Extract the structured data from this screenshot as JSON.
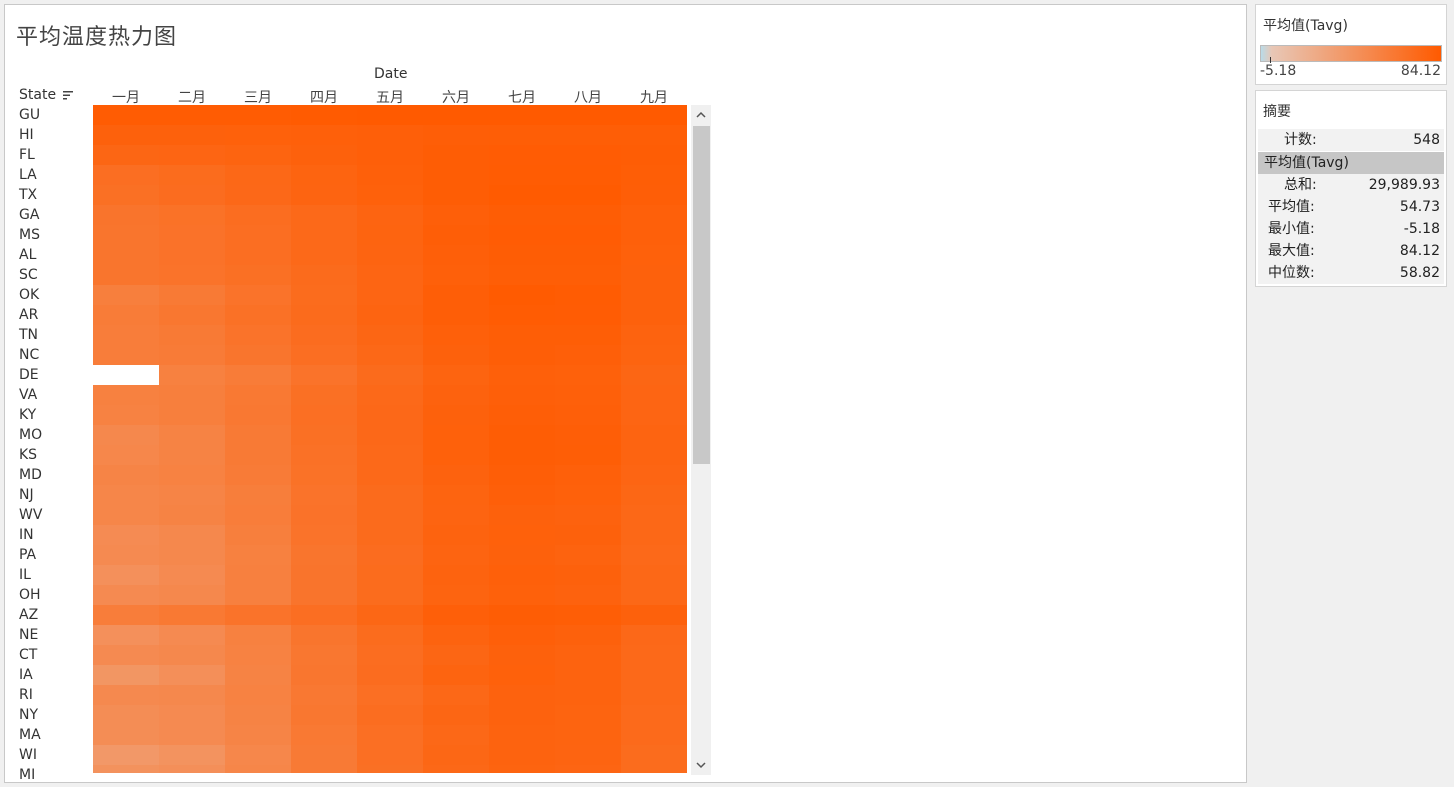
{
  "title": "平均温度热力图",
  "column_group": "Date",
  "row_header": "State",
  "months": [
    "一月",
    "二月",
    "三月",
    "四月",
    "五月",
    "六月",
    "七月",
    "八月",
    "九月"
  ],
  "legend": {
    "title": "平均值(Tavg)",
    "min": "-5.18",
    "max": "84.12",
    "color_low": "#b9dbe8",
    "color_mid": "#e8c7b6",
    "color_high": "#ff5a00"
  },
  "summary": {
    "title": "摘要",
    "count_label": "计数:",
    "count_value": "548",
    "measure": "平均值(Tavg)",
    "stats": [
      {
        "label": "总和:",
        "value": "29,989.93"
      },
      {
        "label": "平均值:",
        "value": "54.73"
      },
      {
        "label": "最小值:",
        "value": "-5.18"
      },
      {
        "label": "最大值:",
        "value": "84.12"
      },
      {
        "label": "中位数:",
        "value": "58.82"
      }
    ]
  },
  "chart_data": {
    "type": "heatmap",
    "title": "平均温度热力图",
    "x_group_label": "Date",
    "y_label": "State",
    "x": [
      "一月",
      "二月",
      "三月",
      "四月",
      "五月",
      "六月",
      "七月",
      "八月",
      "九月"
    ],
    "y": [
      "GU",
      "HI",
      "FL",
      "LA",
      "TX",
      "GA",
      "MS",
      "AL",
      "SC",
      "OK",
      "AR",
      "TN",
      "NC",
      "DE",
      "VA",
      "KY",
      "MO",
      "KS",
      "MD",
      "NJ",
      "WV",
      "IN",
      "PA",
      "IL",
      "OH",
      "AZ",
      "NE",
      "CT",
      "IA",
      "RI",
      "NY",
      "MA",
      "WI",
      "MI"
    ],
    "color_range": [
      -5.18,
      84.12
    ],
    "values": [
      [
        82,
        82,
        82,
        83,
        84,
        84,
        84,
        84,
        84
      ],
      [
        74,
        74,
        75,
        76,
        77,
        78,
        79,
        79,
        79
      ],
      [
        68,
        69,
        71,
        74,
        77,
        80,
        81,
        81,
        80
      ],
      [
        58,
        61,
        66,
        71,
        76,
        80,
        82,
        82,
        79
      ],
      [
        56,
        60,
        65,
        70,
        75,
        80,
        83,
        83,
        78
      ],
      [
        51,
        54,
        59,
        64,
        70,
        77,
        80,
        80,
        76
      ],
      [
        50,
        53,
        58,
        64,
        71,
        78,
        81,
        81,
        76
      ],
      [
        50,
        53,
        58,
        64,
        70,
        77,
        80,
        80,
        75
      ],
      [
        50,
        52,
        56,
        62,
        69,
        76,
        79,
        79,
        74
      ],
      [
        40,
        45,
        52,
        61,
        69,
        78,
        83,
        82,
        74
      ],
      [
        43,
        48,
        55,
        62,
        70,
        78,
        82,
        81,
        74
      ],
      [
        42,
        45,
        52,
        60,
        68,
        76,
        79,
        79,
        72
      ],
      [
        42,
        44,
        50,
        58,
        66,
        74,
        78,
        77,
        71
      ],
      [
        null,
        38,
        43,
        52,
        62,
        71,
        76,
        75,
        68
      ],
      [
        38,
        40,
        46,
        56,
        64,
        73,
        77,
        76,
        69
      ],
      [
        37,
        40,
        47,
        57,
        65,
        74,
        78,
        77,
        69
      ],
      [
        31,
        36,
        45,
        56,
        65,
        75,
        80,
        78,
        70
      ],
      [
        32,
        36,
        45,
        55,
        64,
        75,
        80,
        79,
        70
      ],
      [
        35,
        37,
        44,
        54,
        64,
        73,
        78,
        76,
        69
      ],
      [
        33,
        35,
        41,
        52,
        62,
        71,
        77,
        75,
        67
      ],
      [
        33,
        36,
        42,
        53,
        62,
        70,
        74,
        73,
        66
      ],
      [
        28,
        31,
        40,
        52,
        62,
        72,
        75,
        74,
        66
      ],
      [
        29,
        31,
        38,
        50,
        60,
        70,
        74,
        72,
        64
      ],
      [
        24,
        29,
        39,
        51,
        61,
        72,
        76,
        74,
        66
      ],
      [
        29,
        31,
        39,
        51,
        61,
        71,
        75,
        73,
        66
      ],
      [
        42,
        46,
        52,
        58,
        67,
        77,
        80,
        79,
        74
      ],
      [
        24,
        29,
        38,
        50,
        61,
        72,
        77,
        74,
        65
      ],
      [
        29,
        31,
        37,
        48,
        59,
        68,
        74,
        72,
        64
      ],
      [
        20,
        25,
        36,
        49,
        60,
        71,
        75,
        72,
        64
      ],
      [
        30,
        31,
        37,
        47,
        57,
        66,
        73,
        72,
        64
      ],
      [
        27,
        29,
        36,
        48,
        59,
        68,
        73,
        71,
        63
      ],
      [
        27,
        29,
        35,
        46,
        57,
        66,
        72,
        71,
        63
      ],
      [
        18,
        22,
        32,
        45,
        57,
        67,
        72,
        70,
        61
      ],
      [
        23,
        25,
        33,
        45,
        56,
        66,
        71,
        69,
        61
      ]
    ]
  }
}
